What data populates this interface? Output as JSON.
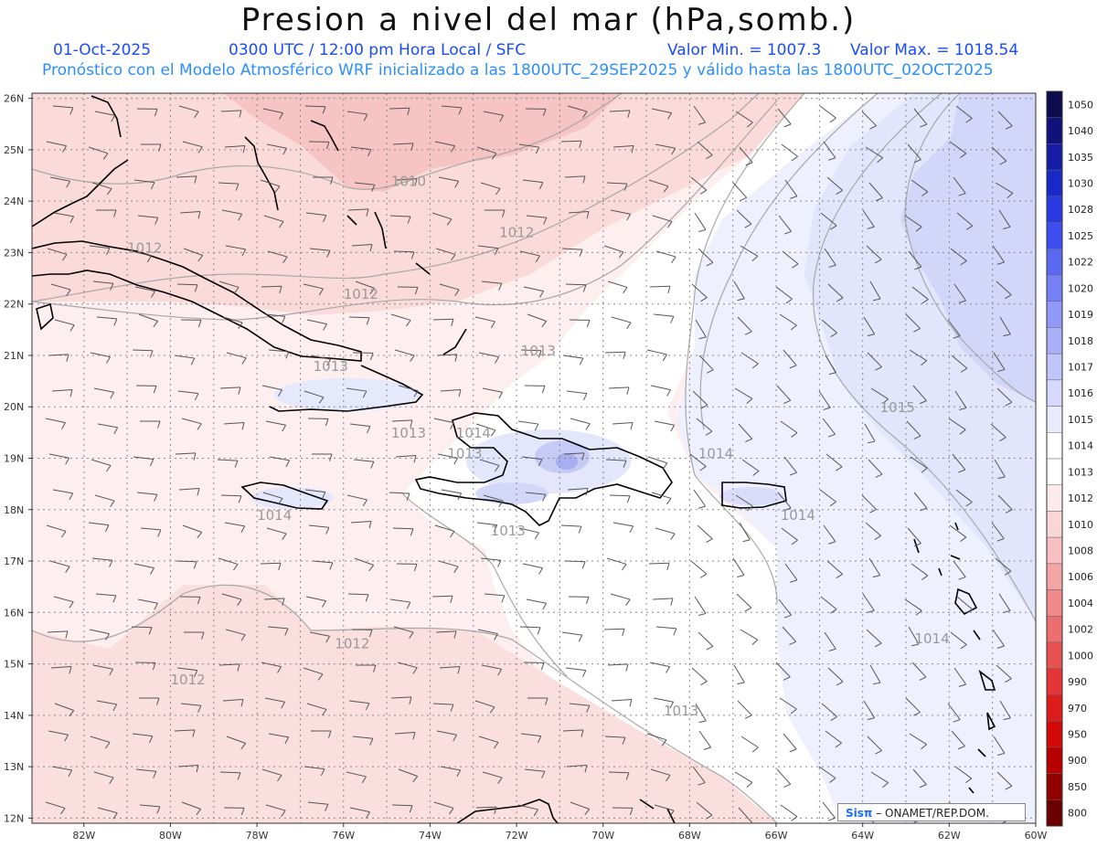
{
  "header": {
    "title": "Presion a nivel del mar (hPa,somb.)",
    "date": "01-Oct-2025",
    "time": "0300 UTC / 12:00 pm Hora Local / SFC",
    "valmin": "Valor Min. = 1007.3",
    "valmax": "Valor Max. = 1018.54",
    "model_line": "Pronóstico con el Modelo Atmosférico WRF inicializado a las 1800UTC_29SEP2025 y válido hasta las  1800UTC_02OCT2025"
  },
  "credit": {
    "brand": "Sisπ",
    "text": " – ONAMET/REP.DOM."
  },
  "axes": {
    "lat_labels": [
      "26N",
      "25N",
      "24N",
      "23N",
      "22N",
      "21N",
      "20N",
      "19N",
      "18N",
      "17N",
      "16N",
      "15N",
      "14N",
      "13N",
      "12N"
    ],
    "lon_labels": [
      "82W",
      "80W",
      "78W",
      "76W",
      "74W",
      "72W",
      "70W",
      "68W",
      "66W",
      "64W",
      "62W",
      "60W"
    ]
  },
  "contour_labels": [
    {
      "text": "1010",
      "lon": -74.9,
      "lat": 24.3
    },
    {
      "text": "1012",
      "lon": -72.4,
      "lat": 23.3
    },
    {
      "text": "1012",
      "lon": -81.0,
      "lat": 23.0
    },
    {
      "text": "1012",
      "lon": -76.0,
      "lat": 22.1
    },
    {
      "text": "1013",
      "lon": -71.9,
      "lat": 21.0
    },
    {
      "text": "1013",
      "lon": -76.7,
      "lat": 20.7
    },
    {
      "text": "1013",
      "lon": -74.9,
      "lat": 19.4
    },
    {
      "text": "1014",
      "lon": -73.4,
      "lat": 19.4
    },
    {
      "text": "1013",
      "lon": -73.6,
      "lat": 19.0
    },
    {
      "text": "1014",
      "lon": -67.8,
      "lat": 19.0
    },
    {
      "text": "1015",
      "lon": -63.6,
      "lat": 19.9
    },
    {
      "text": "1014",
      "lon": -78.0,
      "lat": 17.8
    },
    {
      "text": "1014",
      "lon": -65.9,
      "lat": 17.8
    },
    {
      "text": "1013",
      "lon": -72.6,
      "lat": 17.5
    },
    {
      "text": "1012",
      "lon": -76.2,
      "lat": 15.3
    },
    {
      "text": "1014",
      "lon": -62.8,
      "lat": 15.4
    },
    {
      "text": "1012",
      "lon": -80.0,
      "lat": 14.6
    },
    {
      "text": "1013",
      "lon": -68.6,
      "lat": 14.0
    }
  ],
  "colorbar": [
    {
      "label": "1050",
      "color": "#0b0b4d"
    },
    {
      "label": "1040",
      "color": "#0f127a"
    },
    {
      "label": "1035",
      "color": "#151da6"
    },
    {
      "label": "1030",
      "color": "#1a28c8"
    },
    {
      "label": "1028",
      "color": "#2a3ae2"
    },
    {
      "label": "1025",
      "color": "#3d4ef0"
    },
    {
      "label": "1022",
      "color": "#5a68f2"
    },
    {
      "label": "1020",
      "color": "#7580f4"
    },
    {
      "label": "1019",
      "color": "#9199f6"
    },
    {
      "label": "1018",
      "color": "#aab0f8"
    },
    {
      "label": "1017",
      "color": "#c1c6fa"
    },
    {
      "label": "1016",
      "color": "#d6d9fb"
    },
    {
      "label": "1015",
      "color": "#e9ebfd"
    },
    {
      "label": "1014",
      "color": "#ffffff"
    },
    {
      "label": "1013",
      "color": "#ffffff"
    },
    {
      "label": "1012",
      "color": "#fdeaea"
    },
    {
      "label": "1010",
      "color": "#fbd6d6"
    },
    {
      "label": "1008",
      "color": "#f8c0c0"
    },
    {
      "label": "1006",
      "color": "#f4a6a6"
    },
    {
      "label": "1004",
      "color": "#f08a8a"
    },
    {
      "label": "1002",
      "color": "#ec6e6e"
    },
    {
      "label": "1000",
      "color": "#e85252"
    },
    {
      "label": "990",
      "color": "#e43636"
    },
    {
      "label": "970",
      "color": "#de1c1c"
    },
    {
      "label": "950",
      "color": "#d40808"
    },
    {
      "label": "900",
      "color": "#b80000"
    },
    {
      "label": "850",
      "color": "#920000"
    },
    {
      "label": "800",
      "color": "#6a0000"
    }
  ]
}
